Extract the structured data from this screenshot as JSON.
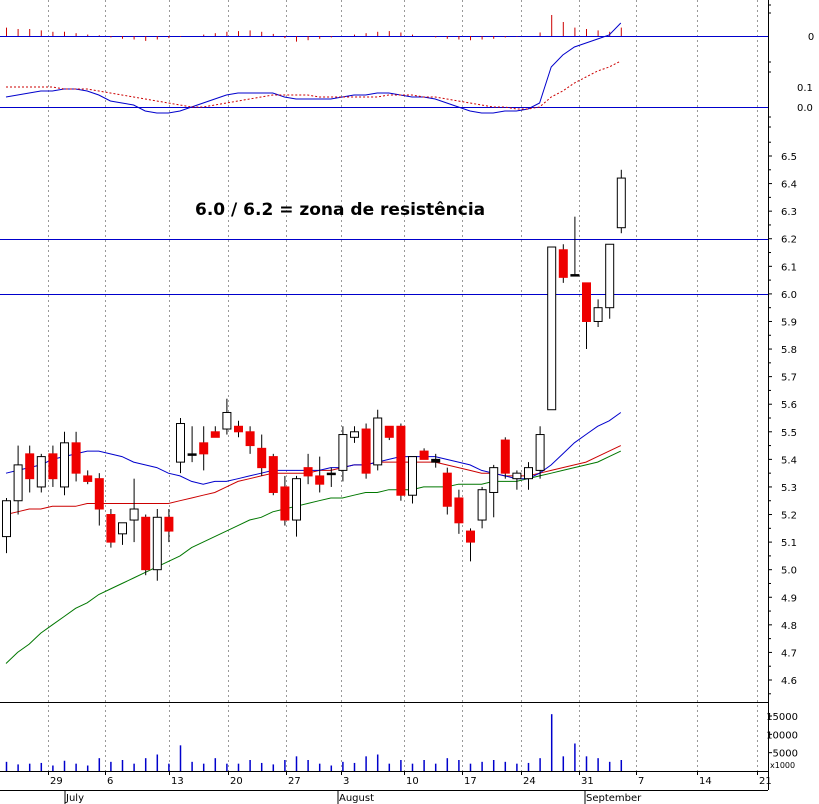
{
  "chart_data": {
    "type": "candlestick",
    "annotation": "6.0 / 6.2 = zona de resistência",
    "price_axis": {
      "ylim": [
        4.52,
        6.6
      ],
      "ticks": [
        "4.6",
        "4.7",
        "4.8",
        "4.9",
        "5.0",
        "5.1",
        "5.2",
        "5.3",
        "5.4",
        "5.5",
        "5.6",
        "5.7",
        "5.8",
        "5.9",
        "6.0",
        "6.1",
        "6.2",
        "6.3",
        "6.4",
        "6.5"
      ]
    },
    "hlines": [
      6.0,
      6.2
    ],
    "histogram_axis": {
      "ylim": [
        -0.02,
        0.035
      ],
      "ticks": [
        "0"
      ]
    },
    "macd_axis": {
      "ylim": [
        -0.2,
        0.55
      ],
      "ticks": [
        "0.1",
        "0.0"
      ]
    },
    "volume_axis": {
      "ylim": [
        0,
        17000
      ],
      "ticks": [
        "5000",
        "10000",
        "15000"
      ],
      "unit": "x1000"
    },
    "x_day_labels": [
      "29",
      "6",
      "13",
      "20",
      "27",
      "3",
      "10",
      "17",
      "24",
      "31",
      "7",
      "14",
      "21"
    ],
    "x_month_labels": [
      "July",
      "August",
      "September"
    ],
    "candles": [
      {
        "o": 5.12,
        "h": 5.26,
        "l": 5.06,
        "c": 5.25,
        "v": 2500,
        "hist": 0.012,
        "m": 0.05,
        "s": 0.1
      },
      {
        "o": 5.25,
        "h": 5.45,
        "l": 5.2,
        "c": 5.38,
        "v": 1800,
        "hist": 0.01,
        "m": 0.06,
        "s": 0.1
      },
      {
        "o": 5.42,
        "h": 5.45,
        "l": 5.28,
        "c": 5.33,
        "v": 2000,
        "hist": 0.01,
        "m": 0.07,
        "s": 0.1
      },
      {
        "o": 5.3,
        "h": 5.42,
        "l": 5.28,
        "c": 5.41,
        "v": 2200,
        "hist": 0.008,
        "m": 0.08,
        "s": 0.1
      },
      {
        "o": 5.42,
        "h": 5.45,
        "l": 5.3,
        "c": 5.33,
        "v": 1500,
        "hist": 0.006,
        "m": 0.08,
        "s": 0.1
      },
      {
        "o": 5.3,
        "h": 5.5,
        "l": 5.27,
        "c": 5.46,
        "v": 2800,
        "hist": 0.006,
        "m": 0.09,
        "s": 0.09
      },
      {
        "o": 5.46,
        "h": 5.5,
        "l": 5.32,
        "c": 5.35,
        "v": 2000,
        "hist": 0.004,
        "m": 0.09,
        "s": 0.09
      },
      {
        "o": 5.34,
        "h": 5.36,
        "l": 5.31,
        "c": 5.32,
        "v": 1500,
        "hist": 0.002,
        "m": 0.08,
        "s": 0.09
      },
      {
        "o": 5.33,
        "h": 5.35,
        "l": 5.16,
        "c": 5.22,
        "v": 3500,
        "hist": 0.001,
        "m": 0.06,
        "s": 0.08
      },
      {
        "o": 5.2,
        "h": 5.22,
        "l": 5.08,
        "c": 5.1,
        "v": 2500,
        "hist": -0.002,
        "m": 0.03,
        "s": 0.07
      },
      {
        "o": 5.13,
        "h": 5.17,
        "l": 5.09,
        "c": 5.17,
        "v": 3000,
        "hist": -0.004,
        "m": 0.02,
        "s": 0.06
      },
      {
        "o": 5.18,
        "h": 5.33,
        "l": 5.1,
        "c": 5.22,
        "v": 2000,
        "hist": -0.005,
        "m": 0.01,
        "s": 0.05
      },
      {
        "o": 5.19,
        "h": 5.2,
        "l": 4.98,
        "c": 5.0,
        "v": 3500,
        "hist": -0.007,
        "m": -0.02,
        "s": 0.04
      },
      {
        "o": 5.0,
        "h": 5.22,
        "l": 4.96,
        "c": 5.19,
        "v": 4500,
        "hist": -0.005,
        "m": -0.03,
        "s": 0.03
      },
      {
        "o": 5.19,
        "h": 5.22,
        "l": 5.1,
        "c": 5.14,
        "v": 2000,
        "hist": -0.003,
        "m": -0.03,
        "s": 0.02
      },
      {
        "o": 5.39,
        "h": 5.55,
        "l": 5.35,
        "c": 5.53,
        "v": 7000,
        "hist": -0.001,
        "m": -0.02,
        "s": 0.01
      },
      {
        "o": 5.42,
        "h": 5.52,
        "l": 5.39,
        "c": 5.42,
        "v": 2500,
        "hist": 0.0,
        "m": 0.0,
        "s": 0.0
      },
      {
        "o": 5.46,
        "h": 5.52,
        "l": 5.36,
        "c": 5.42,
        "v": 2000,
        "hist": 0.002,
        "m": 0.02,
        "s": 0.0
      },
      {
        "o": 5.5,
        "h": 5.52,
        "l": 5.48,
        "c": 5.48,
        "v": 3500,
        "hist": 0.004,
        "m": 0.04,
        "s": 0.01
      },
      {
        "o": 5.51,
        "h": 5.62,
        "l": 5.49,
        "c": 5.57,
        "v": 2000,
        "hist": 0.006,
        "m": 0.06,
        "s": 0.02
      },
      {
        "o": 5.52,
        "h": 5.54,
        "l": 5.48,
        "c": 5.5,
        "v": 2000,
        "hist": 0.007,
        "m": 0.07,
        "s": 0.03
      },
      {
        "o": 5.5,
        "h": 5.52,
        "l": 5.42,
        "c": 5.45,
        "v": 3000,
        "hist": 0.008,
        "m": 0.07,
        "s": 0.04
      },
      {
        "o": 5.44,
        "h": 5.49,
        "l": 5.34,
        "c": 5.37,
        "v": 2200,
        "hist": 0.006,
        "m": 0.07,
        "s": 0.05
      },
      {
        "o": 5.41,
        "h": 5.42,
        "l": 5.27,
        "c": 5.28,
        "v": 1800,
        "hist": 0.003,
        "m": 0.07,
        "s": 0.06
      },
      {
        "o": 5.3,
        "h": 5.34,
        "l": 5.16,
        "c": 5.18,
        "v": 3000,
        "hist": -0.003,
        "m": 0.05,
        "s": 0.06
      },
      {
        "o": 5.18,
        "h": 5.34,
        "l": 5.12,
        "c": 5.33,
        "v": 4000,
        "hist": -0.008,
        "m": 0.04,
        "s": 0.06
      },
      {
        "o": 5.37,
        "h": 5.42,
        "l": 5.31,
        "c": 5.34,
        "v": 3000,
        "hist": -0.006,
        "m": 0.04,
        "s": 0.06
      },
      {
        "o": 5.34,
        "h": 5.41,
        "l": 5.28,
        "c": 5.31,
        "v": 2000,
        "hist": -0.004,
        "m": 0.04,
        "s": 0.05
      },
      {
        "o": 5.35,
        "h": 5.37,
        "l": 5.3,
        "c": 5.35,
        "v": 1500,
        "hist": -0.002,
        "m": 0.04,
        "s": 0.05
      },
      {
        "o": 5.36,
        "h": 5.52,
        "l": 5.32,
        "c": 5.49,
        "v": 2500,
        "hist": 0.0,
        "m": 0.05,
        "s": 0.05
      },
      {
        "o": 5.48,
        "h": 5.52,
        "l": 5.46,
        "c": 5.5,
        "v": 2200,
        "hist": 0.002,
        "m": 0.06,
        "s": 0.05
      },
      {
        "o": 5.51,
        "h": 5.53,
        "l": 5.33,
        "c": 5.35,
        "v": 4000,
        "hist": 0.004,
        "m": 0.06,
        "s": 0.05
      },
      {
        "o": 5.38,
        "h": 5.58,
        "l": 5.36,
        "c": 5.55,
        "v": 4500,
        "hist": 0.006,
        "m": 0.07,
        "s": 0.05
      },
      {
        "o": 5.52,
        "h": 5.52,
        "l": 5.47,
        "c": 5.48,
        "v": 2000,
        "hist": 0.007,
        "m": 0.07,
        "s": 0.06
      },
      {
        "o": 5.52,
        "h": 5.53,
        "l": 5.25,
        "c": 5.27,
        "v": 3000,
        "hist": 0.005,
        "m": 0.06,
        "s": 0.06
      },
      {
        "o": 5.27,
        "h": 5.41,
        "l": 5.24,
        "c": 5.41,
        "v": 2000,
        "hist": 0.002,
        "m": 0.05,
        "s": 0.06
      },
      {
        "o": 5.43,
        "h": 5.44,
        "l": 5.4,
        "c": 5.4,
        "v": 3000,
        "hist": 0.0,
        "m": 0.05,
        "s": 0.05
      },
      {
        "o": 5.4,
        "h": 5.42,
        "l": 5.37,
        "c": 5.39,
        "v": 2000,
        "hist": -0.002,
        "m": 0.04,
        "s": 0.05
      },
      {
        "o": 5.35,
        "h": 5.37,
        "l": 5.2,
        "c": 5.23,
        "v": 3500,
        "hist": -0.004,
        "m": 0.02,
        "s": 0.04
      },
      {
        "o": 5.26,
        "h": 5.29,
        "l": 5.13,
        "c": 5.17,
        "v": 3000,
        "hist": -0.005,
        "m": 0.0,
        "s": 0.03
      },
      {
        "o": 5.14,
        "h": 5.15,
        "l": 5.03,
        "c": 5.1,
        "v": 2000,
        "hist": -0.006,
        "m": -0.02,
        "s": 0.02
      },
      {
        "o": 5.18,
        "h": 5.3,
        "l": 5.15,
        "c": 5.29,
        "v": 2500,
        "hist": -0.005,
        "m": -0.03,
        "s": 0.01
      },
      {
        "o": 5.28,
        "h": 5.38,
        "l": 5.19,
        "c": 5.37,
        "v": 3000,
        "hist": -0.004,
        "m": -0.03,
        "s": 0.0
      },
      {
        "o": 5.47,
        "h": 5.48,
        "l": 5.33,
        "c": 5.35,
        "v": 2500,
        "hist": -0.002,
        "m": -0.02,
        "s": 0.0
      },
      {
        "o": 5.33,
        "h": 5.36,
        "l": 5.29,
        "c": 5.35,
        "v": 2000,
        "hist": -0.001,
        "m": -0.02,
        "s": -0.01
      },
      {
        "o": 5.33,
        "h": 5.39,
        "l": 5.29,
        "c": 5.37,
        "v": 2200,
        "hist": 0.0,
        "m": -0.01,
        "s": -0.01
      },
      {
        "o": 5.36,
        "h": 5.52,
        "l": 5.33,
        "c": 5.49,
        "v": 3500,
        "hist": 0.005,
        "m": 0.02,
        "s": 0.0
      },
      {
        "o": 5.58,
        "h": 6.17,
        "l": 5.58,
        "c": 6.17,
        "v": 15500,
        "hist": 0.03,
        "m": 0.2,
        "s": 0.05
      },
      {
        "o": 6.16,
        "h": 6.18,
        "l": 6.04,
        "c": 6.06,
        "v": 4000,
        "hist": 0.02,
        "m": 0.26,
        "s": 0.08
      },
      {
        "o": 6.07,
        "h": 6.28,
        "l": 6.07,
        "c": 6.07,
        "v": 7500,
        "hist": 0.012,
        "m": 0.3,
        "s": 0.12
      },
      {
        "o": 6.04,
        "h": 6.04,
        "l": 5.8,
        "c": 5.9,
        "v": 4000,
        "hist": 0.01,
        "m": 0.32,
        "s": 0.15
      },
      {
        "o": 5.9,
        "h": 5.98,
        "l": 5.88,
        "c": 5.95,
        "v": 3500,
        "hist": 0.008,
        "m": 0.34,
        "s": 0.18
      },
      {
        "o": 5.95,
        "h": 6.18,
        "l": 5.91,
        "c": 6.18,
        "v": 2500,
        "hist": 0.006,
        "m": 0.36,
        "s": 0.2
      },
      {
        "o": 6.24,
        "h": 6.45,
        "l": 6.22,
        "c": 6.42,
        "v": 3000,
        "hist": 0.012,
        "m": 0.42,
        "s": 0.23
      }
    ],
    "ma_short": [
      5.35,
      5.36,
      5.37,
      5.38,
      5.4,
      5.41,
      5.42,
      5.43,
      5.43,
      5.42,
      5.41,
      5.39,
      5.38,
      5.37,
      5.35,
      5.34,
      5.32,
      5.31,
      5.32,
      5.32,
      5.33,
      5.34,
      5.35,
      5.36,
      5.36,
      5.36,
      5.36,
      5.36,
      5.37,
      5.37,
      5.38,
      5.38,
      5.39,
      5.4,
      5.41,
      5.41,
      5.41,
      5.41,
      5.4,
      5.39,
      5.38,
      5.36,
      5.35,
      5.34,
      5.33,
      5.33,
      5.35,
      5.38,
      5.42,
      5.46,
      5.49,
      5.52,
      5.54,
      5.57
    ],
    "ma_mid": [
      5.2,
      5.21,
      5.22,
      5.22,
      5.23,
      5.23,
      5.23,
      5.24,
      5.24,
      5.24,
      5.24,
      5.24,
      5.24,
      5.24,
      5.24,
      5.25,
      5.26,
      5.27,
      5.28,
      5.3,
      5.32,
      5.33,
      5.34,
      5.35,
      5.35,
      5.35,
      5.35,
      5.36,
      5.36,
      5.37,
      5.38,
      5.38,
      5.39,
      5.39,
      5.39,
      5.39,
      5.39,
      5.39,
      5.38,
      5.37,
      5.36,
      5.35,
      5.35,
      5.34,
      5.34,
      5.34,
      5.35,
      5.36,
      5.37,
      5.38,
      5.39,
      5.41,
      5.43,
      5.45
    ],
    "ma_long": [
      4.66,
      4.7,
      4.73,
      4.77,
      4.8,
      4.83,
      4.86,
      4.88,
      4.91,
      4.93,
      4.95,
      4.97,
      4.99,
      5.01,
      5.03,
      5.05,
      5.08,
      5.1,
      5.12,
      5.14,
      5.16,
      5.18,
      5.19,
      5.21,
      5.22,
      5.23,
      5.24,
      5.25,
      5.26,
      5.26,
      5.27,
      5.28,
      5.28,
      5.29,
      5.29,
      5.29,
      5.3,
      5.3,
      5.3,
      5.31,
      5.31,
      5.31,
      5.32,
      5.32,
      5.32,
      5.33,
      5.34,
      5.35,
      5.36,
      5.37,
      5.38,
      5.39,
      5.41,
      5.43
    ],
    "colors": {
      "up_fill": "#ffffff",
      "down_fill": "#ee0000",
      "flat_fill": "#000000",
      "ma_short": "#0000cc",
      "ma_mid": "#cc0000",
      "ma_long": "#007700",
      "macd": "#0000cc",
      "signal": "#cc0000",
      "histogram": "#cc0000",
      "volume": "#0000cc",
      "hline": "#0000cc",
      "grid": "#999999"
    }
  }
}
